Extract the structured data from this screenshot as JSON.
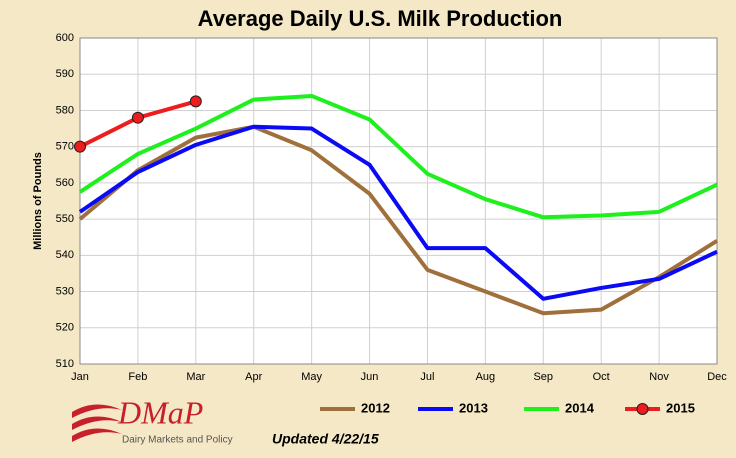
{
  "chart_data": {
    "type": "line",
    "title": "Average Daily U.S. Milk Production",
    "y_label": "Millions of Pounds",
    "categories": [
      "Jan",
      "Feb",
      "Mar",
      "Apr",
      "May",
      "Jun",
      "Jul",
      "Aug",
      "Sep",
      "Oct",
      "Nov",
      "Dec"
    ],
    "series": [
      {
        "name": "2012",
        "color": "#a0703c",
        "values": [
          550,
          563.5,
          572.5,
          575.5,
          569,
          557,
          536,
          530,
          524,
          525,
          534,
          544
        ]
      },
      {
        "name": "2013",
        "color": "#0a0af5",
        "values": [
          552,
          563,
          570.5,
          575.5,
          575,
          565,
          542,
          542,
          528,
          531,
          533.5,
          541
        ]
      },
      {
        "name": "2014",
        "color": "#1ef01e",
        "values": [
          557.5,
          568,
          575,
          583,
          584,
          577.5,
          562.5,
          555.5,
          550.5,
          551,
          552,
          559.5
        ]
      },
      {
        "name": "2015",
        "color": "#ee1c1c",
        "marker": true,
        "values": [
          570,
          578,
          582.5,
          null,
          null,
          null,
          null,
          null,
          null,
          null,
          null,
          null
        ]
      }
    ],
    "ylim": [
      510,
      600
    ],
    "yticks": [
      510,
      520,
      530,
      540,
      550,
      560,
      570,
      580,
      590,
      600
    ],
    "grid": true,
    "legend": "bottom",
    "logo_text": "DMaP",
    "logo_subtext": "Dairy Markets and Policy",
    "note": "Updated 4/22/15"
  }
}
